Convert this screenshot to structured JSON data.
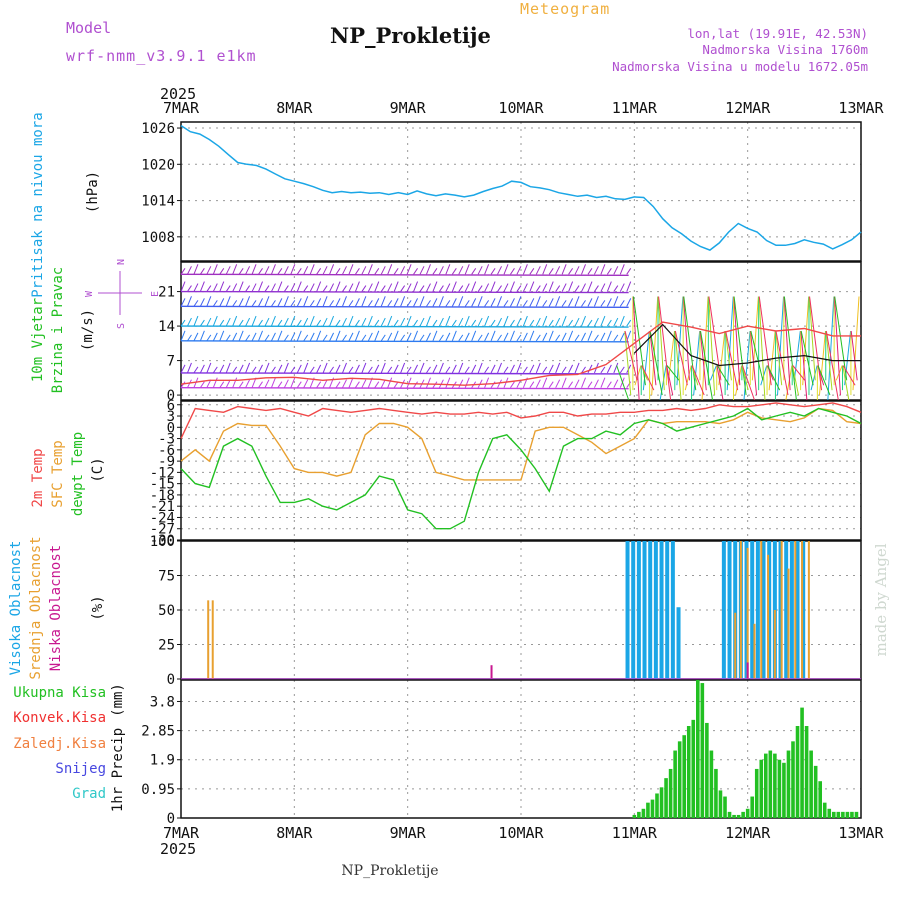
{
  "header": {
    "model_label": "Model",
    "model_name": "wrf-nmm_v3.9.1 e1km",
    "product": "Meteogram",
    "station": "NP_Prokletije",
    "coords": "lon,lat (19.91E, 42.53N)",
    "elevation": "Nadmorska Visina 1760m",
    "model_elevation": "Nadmorska Visina u modelu 1672.05m",
    "footer_station": "NP_Prokletije",
    "watermark": "made by Angel"
  },
  "colors": {
    "pressure": "#1ba6e6",
    "temp": "#f04848",
    "sfc_temp": "#e8a030",
    "dewpt": "#22c022",
    "high_cloud": "#1ba6e6",
    "mid_cloud": "#e8a030",
    "low_cloud": "#c81890",
    "total_precip": "#22c022",
    "conv_precip": "#f03030",
    "freezing": "#f08040",
    "snow": "#4848e0",
    "hail": "#30c8c8",
    "axis_text": "#111111",
    "header_purple": "#b050d0",
    "header_orange": "#f0b040"
  },
  "time_axis": {
    "year_top": "2025",
    "year_bottom": "2025",
    "labels": [
      "7MAR",
      "8MAR",
      "9MAR",
      "10MAR",
      "11MAR",
      "12MAR",
      "13MAR"
    ]
  },
  "chart_data": [
    {
      "type": "line",
      "ylabel_main": "Pritisak na nivou mora",
      "ylabel_unit": "(hPa)",
      "yticks": [
        "1026",
        "1020",
        "1014",
        "1008"
      ],
      "ylim": [
        1004,
        1027
      ],
      "x_days": [
        0,
        0.083,
        0.167,
        0.25,
        0.333,
        0.417,
        0.5,
        0.583,
        0.667,
        0.75,
        0.833,
        0.917,
        1.0,
        1.083,
        1.167,
        1.25,
        1.333,
        1.417,
        1.5,
        1.583,
        1.667,
        1.75,
        1.833,
        1.917,
        2.0,
        2.083,
        2.167,
        2.25,
        2.333,
        2.417,
        2.5,
        2.583,
        2.667,
        2.75,
        2.833,
        2.917,
        3.0,
        3.083,
        3.167,
        3.25,
        3.333,
        3.417,
        3.5,
        3.583,
        3.667,
        3.75,
        3.833,
        3.917,
        4.0,
        4.083,
        4.167,
        4.25,
        4.333,
        4.417,
        4.5,
        4.583,
        4.667,
        4.75,
        4.833,
        4.917,
        5.0,
        5.083,
        5.167,
        5.25,
        5.333,
        5.417,
        5.5,
        5.583,
        5.667,
        5.75,
        5.833,
        5.917,
        6.0
      ],
      "series": [
        {
          "values": [
            1026.4,
            1025.4,
            1025.0,
            1024.1,
            1023.0,
            1021.6,
            1020.3,
            1020.0,
            1019.8,
            1019.2,
            1018.4,
            1017.6,
            1017.2,
            1016.8,
            1016.3,
            1015.7,
            1015.3,
            1015.5,
            1015.3,
            1015.4,
            1015.2,
            1015.3,
            1015.0,
            1015.3,
            1015.0,
            1015.6,
            1015.1,
            1014.8,
            1015.1,
            1014.9,
            1014.6,
            1014.9,
            1015.5,
            1016.0,
            1016.4,
            1017.2,
            1017.0,
            1016.3,
            1016.1,
            1015.8,
            1015.3,
            1015.0,
            1014.7,
            1014.9,
            1014.5,
            1014.7,
            1014.3,
            1014.2,
            1014.6,
            1014.5,
            1013.0,
            1011.0,
            1009.5,
            1008.5,
            1007.3,
            1006.4,
            1005.8,
            1007.0,
            1008.8,
            1010.2,
            1009.4,
            1008.8,
            1007.4,
            1006.6,
            1006.6,
            1006.9,
            1007.5,
            1007.1,
            1006.8,
            1006.0,
            1006.7,
            1007.5,
            1008.8
          ]
        }
      ]
    },
    {
      "type": "line",
      "ylabel_main": "10m Vjetar",
      "ylabel_main2": "Brzina i Pravac",
      "ylabel_unit": "(m/s)",
      "compass": [
        "N",
        "W",
        "E",
        "S"
      ],
      "yticks": [
        "21",
        "14",
        "7",
        "0"
      ],
      "ylim": [
        -1,
        27
      ],
      "x_days": [
        0,
        0.25,
        0.5,
        0.75,
        1.0,
        1.25,
        1.5,
        1.75,
        2.0,
        2.25,
        2.5,
        2.75,
        3.0,
        3.25,
        3.5,
        3.75,
        4.0,
        4.25,
        4.5,
        4.75,
        5.0,
        5.25,
        5.5,
        5.75,
        6.0
      ],
      "series": [
        {
          "values": [
            2.2,
            3.0,
            3.0,
            3.5,
            3.6,
            3.0,
            3.4,
            3.2,
            2.3,
            2.2,
            2.0,
            2.3,
            3.0,
            4.0,
            4.2,
            6.2,
            10.5,
            14.8,
            13.8,
            12.5,
            14.0,
            13.0,
            13.5,
            12.0,
            12.0
          ]
        },
        {
          "values": [
            null,
            null,
            null,
            null,
            null,
            null,
            null,
            null,
            null,
            null,
            null,
            null,
            null,
            null,
            null,
            null,
            8.5,
            14.3,
            8.0,
            6.0,
            6.5,
            7.5,
            8.0,
            7.0,
            7.0
          ]
        }
      ]
    },
    {
      "type": "line",
      "ylabel_main": "2m Temp",
      "ylabel_main2": "SFC Temp",
      "ylabel_main3": "dewpt Temp",
      "ylabel_unit": "(C)",
      "yticks": [
        "6",
        "3",
        "0",
        "-3",
        "-6",
        "-9",
        "-12",
        "-15",
        "-18",
        "-21",
        "-24",
        "-27",
        "-30"
      ],
      "ylim": [
        -30,
        7
      ],
      "x_days": [
        0,
        0.125,
        0.25,
        0.375,
        0.5,
        0.625,
        0.75,
        0.875,
        1.0,
        1.125,
        1.25,
        1.375,
        1.5,
        1.625,
        1.75,
        1.875,
        2.0,
        2.125,
        2.25,
        2.375,
        2.5,
        2.625,
        2.75,
        2.875,
        3.0,
        3.125,
        3.25,
        3.375,
        3.5,
        3.625,
        3.75,
        3.875,
        4.0,
        4.125,
        4.25,
        4.375,
        4.5,
        4.625,
        4.75,
        4.875,
        5.0,
        5.125,
        5.25,
        5.375,
        5.5,
        5.625,
        5.75,
        5.875,
        6.0
      ],
      "series": [
        {
          "name": "2m Temp",
          "values": [
            -3,
            5,
            4.5,
            4,
            5.5,
            5,
            4.5,
            5,
            4,
            3,
            5,
            4.5,
            4,
            4.5,
            5,
            4.5,
            4,
            3.5,
            4,
            3.5,
            3.5,
            4,
            3.5,
            4,
            2.5,
            3,
            4,
            4,
            3,
            3.5,
            3.5,
            4,
            4,
            4.5,
            4.5,
            5,
            4.5,
            5,
            6,
            5.5,
            5.5,
            6,
            6.5,
            6,
            5.5,
            6,
            6.5,
            5.5,
            4
          ]
        },
        {
          "name": "SFC Temp",
          "values": [
            -9,
            -6,
            -9,
            -1,
            1,
            0.5,
            0.5,
            -5,
            -11,
            -12,
            -12,
            -13,
            -12,
            -2,
            1,
            1,
            0,
            -3,
            -12,
            -13,
            -14,
            -14,
            -14,
            -14,
            -14,
            -1,
            0,
            0,
            -2,
            -4,
            -7,
            -5,
            -3,
            2,
            1,
            1.5,
            1.5,
            1.5,
            1,
            2,
            4,
            2.5,
            2,
            1.5,
            2.5,
            5,
            4.5,
            1.5,
            1
          ]
        },
        {
          "name": "dewpt Temp",
          "values": [
            -11,
            -15,
            -16,
            -5,
            -3,
            -5,
            -13,
            -20,
            -20,
            -19,
            -21,
            -22,
            -20,
            -18,
            -13,
            -14,
            -22,
            -23,
            -27,
            -27,
            -25,
            -12,
            -3,
            -2,
            -6,
            -11,
            -17,
            -5,
            -3,
            -3,
            -1,
            -2,
            1,
            2,
            1,
            -1,
            0,
            1,
            2,
            3,
            5,
            2,
            3,
            4,
            3,
            5,
            4,
            3,
            1
          ]
        }
      ]
    },
    {
      "type": "bar",
      "ylabel_main": "Visoka Oblacnost",
      "ylabel_main2": "Srednja Oblacnost",
      "ylabel_main3": "Niska Oblacnost",
      "ylabel_unit": "(%)",
      "yticks": [
        "100",
        "75",
        "50",
        "25",
        "0"
      ],
      "ylim": [
        0,
        100
      ],
      "series": [
        {
          "name": "Visoka Oblacnost",
          "x_days": [
            3.94,
            3.99,
            4.04,
            4.09,
            4.14,
            4.19,
            4.24,
            4.29,
            4.34,
            4.39,
            4.79,
            4.84,
            4.89,
            4.94,
            4.99,
            5.04,
            5.09,
            5.14,
            5.19,
            5.24,
            5.29,
            5.34,
            5.39,
            5.44,
            5.49
          ],
          "values": [
            100,
            100,
            100,
            100,
            100,
            100,
            100,
            100,
            100,
            52,
            100,
            100,
            100,
            100,
            100,
            100,
            100,
            100,
            100,
            100,
            100,
            100,
            100,
            100,
            100
          ]
        },
        {
          "name": "Srednja Oblacnost",
          "x_days": [
            0.24,
            0.28,
            4.89,
            4.94,
            5.0,
            5.06,
            5.12,
            5.18,
            5.24,
            5.3,
            5.36,
            5.42,
            5.48,
            5.54
          ],
          "values": [
            57,
            57,
            48,
            100,
            95,
            40,
            100,
            90,
            50,
            100,
            80,
            100,
            100,
            100
          ]
        },
        {
          "name": "Niska Oblacnost",
          "x_days": [
            2.74,
            5.0
          ],
          "values": [
            10,
            12
          ]
        }
      ]
    },
    {
      "type": "bar",
      "ylabel_main": "1hr Precip",
      "ylabel_unit": "(mm)",
      "legend": [
        "Ukupna Kisa",
        "Konvek.Kisa",
        "Zaledj.Kisa",
        "Snijeg",
        "Grad"
      ],
      "yticks": [
        "3.8",
        "2.85",
        "1.9",
        "0.95",
        "0"
      ],
      "ylim": [
        0,
        4.5
      ],
      "series": [
        {
          "name": "Ukupna Kisa",
          "x_days": [
            4.0,
            4.04,
            4.08,
            4.12,
            4.16,
            4.2,
            4.24,
            4.28,
            4.32,
            4.36,
            4.4,
            4.44,
            4.48,
            4.52,
            4.56,
            4.6,
            4.64,
            4.68,
            4.72,
            4.76,
            4.8,
            4.84,
            4.88,
            4.92,
            4.96,
            5.0,
            5.04,
            5.08,
            5.12,
            5.16,
            5.2,
            5.24,
            5.28,
            5.32,
            5.36,
            5.4,
            5.44,
            5.48,
            5.52,
            5.56,
            5.6,
            5.64,
            5.68,
            5.72,
            5.76,
            5.8,
            5.84,
            5.88,
            5.92,
            5.96
          ],
          "values": [
            0.1,
            0.2,
            0.3,
            0.5,
            0.6,
            0.8,
            1.0,
            1.3,
            1.6,
            2.2,
            2.5,
            2.7,
            3.0,
            3.2,
            4.5,
            4.4,
            3.1,
            2.2,
            1.6,
            0.9,
            0.7,
            0.2,
            0.1,
            0.1,
            0.2,
            0.3,
            0.7,
            1.6,
            1.9,
            2.1,
            2.2,
            2.1,
            1.9,
            1.8,
            2.2,
            2.5,
            3.0,
            3.6,
            3.0,
            2.2,
            1.7,
            1.2,
            0.5,
            0.3,
            0.2,
            0.2,
            0.2,
            0.2,
            0.2,
            0.2
          ]
        }
      ]
    }
  ]
}
